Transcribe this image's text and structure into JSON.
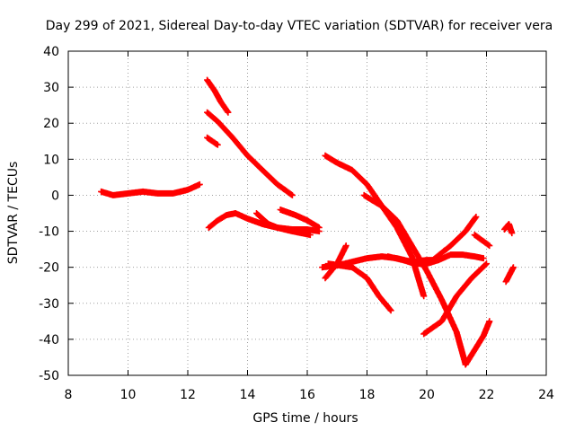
{
  "chart_data": {
    "type": "scatter",
    "title": "Day 299 of 2021, Sidereal Day-to-day VTEC variation (SDTVAR) for receiver vera",
    "xlabel": "GPS time / hours",
    "ylabel": "SDTVAR / TECUs",
    "xlim": [
      8,
      24
    ],
    "ylim": [
      -50,
      40
    ],
    "xticks": [
      "8",
      "10",
      "12",
      "14",
      "16",
      "18",
      "20",
      "22",
      "24"
    ],
    "yticks": [
      "-50",
      "-40",
      "-30",
      "-20",
      "-10",
      "0",
      "10",
      "20",
      "30",
      "40"
    ],
    "grid": true,
    "marker": "plus",
    "color": "#ff0000",
    "series": [
      {
        "x": [
          9.1,
          9.5,
          10.0,
          10.5,
          11.0,
          11.5,
          12.0,
          12.4
        ],
        "y": [
          1,
          0,
          0.5,
          1,
          0.5,
          0.5,
          1.5,
          3
        ]
      },
      {
        "x": [
          12.65,
          12.9,
          13.1,
          13.35
        ],
        "y": [
          32,
          29,
          26,
          23
        ]
      },
      {
        "x": [
          12.65,
          13.0
        ],
        "y": [
          16,
          14
        ]
      },
      {
        "x": [
          12.65,
          13.0,
          13.5,
          14.0,
          14.5,
          15.0,
          15.5
        ],
        "y": [
          23,
          20.5,
          16,
          11,
          7,
          3,
          0
        ]
      },
      {
        "x": [
          12.7,
          13.0,
          13.3,
          13.6,
          14.0,
          14.5,
          15.0,
          15.5,
          16.1
        ],
        "y": [
          -9,
          -7,
          -5.5,
          -5,
          -6.5,
          -8,
          -9,
          -10,
          -11
        ]
      },
      {
        "x": [
          14.3,
          14.7,
          15.0,
          15.5,
          16.0,
          16.4
        ],
        "y": [
          -5,
          -8,
          -9,
          -9.5,
          -9.5,
          -10
        ]
      },
      {
        "x": [
          15.1,
          15.6,
          16.0,
          16.4
        ],
        "y": [
          -4,
          -5.5,
          -7,
          -9
        ]
      },
      {
        "x": [
          16.6,
          17.0,
          17.5,
          18.0,
          18.5,
          19.0,
          19.5,
          19.9
        ],
        "y": [
          11,
          9,
          7,
          3,
          -3,
          -9,
          -17,
          -28
        ]
      },
      {
        "x": [
          17.9,
          18.5,
          19.0,
          19.5,
          20.0,
          20.5,
          21.0,
          21.3
        ],
        "y": [
          0,
          -3,
          -7,
          -14,
          -21,
          -29,
          -38,
          -47
        ]
      },
      {
        "x": [
          21.3,
          21.6,
          21.9,
          22.1
        ],
        "y": [
          -47,
          -43,
          -39,
          -35
        ]
      },
      {
        "x": [
          16.5,
          17.0,
          17.5,
          18.0,
          18.5,
          19.0,
          19.5,
          20.0,
          20.2
        ],
        "y": [
          -20,
          -19.5,
          -18.5,
          -17.5,
          -17,
          -17.5,
          -18.5,
          -18,
          -18
        ]
      },
      {
        "x": [
          16.6,
          17.0,
          17.3
        ],
        "y": [
          -23,
          -19,
          -14
        ]
      },
      {
        "x": [
          16.7,
          17.5,
          18.0,
          18.4,
          18.8
        ],
        "y": [
          -19,
          -20,
          -23,
          -28,
          -32
        ]
      },
      {
        "x": [
          18.7,
          19.2,
          19.6,
          20.0,
          20.4,
          20.8,
          21.2,
          21.6,
          21.9
        ],
        "y": [
          -17,
          -18,
          -19,
          -19,
          -18,
          -16.5,
          -16.5,
          -17,
          -17.5
        ]
      },
      {
        "x": [
          19.9,
          20.5,
          21.0,
          21.5,
          22.0
        ],
        "y": [
          -38.5,
          -35,
          -28,
          -23,
          -19
        ]
      },
      {
        "x": [
          20.2,
          20.8,
          21.3,
          21.65
        ],
        "y": [
          -18,
          -14,
          -10,
          -6
        ]
      },
      {
        "x": [
          21.6,
          22.1
        ],
        "y": [
          -11,
          -14
        ]
      },
      {
        "x": [
          22.6,
          22.75,
          22.85
        ],
        "y": [
          -9.5,
          -8,
          -10.5
        ]
      },
      {
        "x": [
          22.65,
          22.9
        ],
        "y": [
          -24,
          -20
        ]
      }
    ]
  }
}
